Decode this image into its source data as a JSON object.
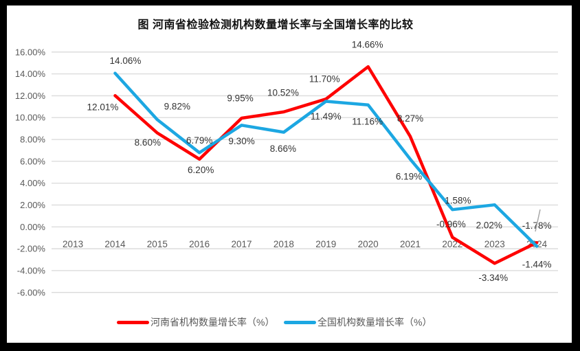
{
  "title": "图  河南省检验检测机构数量增长率与全国增长率的比较",
  "colors": {
    "henan_line": "#FE0000",
    "national_line": "#1CA7E2",
    "gridline": "#DCDCDC",
    "axis_text": "#595959",
    "data_label_text": "#333333",
    "frame": "#000000",
    "chart_background": "#FFFFFF",
    "cursor_artifact": "#A6A6A6"
  },
  "legend": {
    "items": [
      {
        "label": "河南省机构数量增长率（%）"
      },
      {
        "label": "全国机构数量增长率（%）"
      }
    ]
  },
  "chart_data": {
    "type": "line",
    "title": "图  河南省检验检测机构数量增长率与全国增长率的比较",
    "x": [
      "2013",
      "2014",
      "2015",
      "2016",
      "2017",
      "2018",
      "2019",
      "2020",
      "2021",
      "2022",
      "2023",
      "2024"
    ],
    "series": [
      {
        "name": "河南省机构数量增长率（%）",
        "color": "#FE0000",
        "values": [
          null,
          12.01,
          8.6,
          6.2,
          9.95,
          10.52,
          11.7,
          14.66,
          8.27,
          -0.96,
          -3.34,
          -1.44
        ],
        "point_labels": [
          "",
          "12.01%",
          "8.60%",
          "6.20%",
          "9.95%",
          "10.52%",
          "11.70%",
          "14.66%",
          "8.27%",
          "-0.96%",
          "-3.34%",
          "-1.44%"
        ]
      },
      {
        "name": "全国机构数量增长率（%）",
        "color": "#1CA7E2",
        "values": [
          null,
          14.06,
          9.82,
          6.79,
          9.3,
          8.66,
          11.49,
          11.16,
          6.19,
          1.58,
          2.02,
          -1.78
        ],
        "point_labels": [
          "",
          "14.06%",
          "9.82%",
          "6.79%",
          "9.30%",
          "8.66%",
          "11.49%",
          "11.16%",
          "6.19%",
          "1.58%",
          "2.02%",
          "-1.78%"
        ]
      }
    ],
    "ylim": [
      -6,
      16
    ],
    "ytick_step": 2,
    "yticks": [
      "16.00%",
      "14.00%",
      "12.00%",
      "10.00%",
      "8.00%",
      "6.00%",
      "4.00%",
      "2.00%",
      "0.00%",
      "-2.00%",
      "-4.00%",
      "-6.00%"
    ],
    "grid": true,
    "legend_position": "bottom"
  }
}
